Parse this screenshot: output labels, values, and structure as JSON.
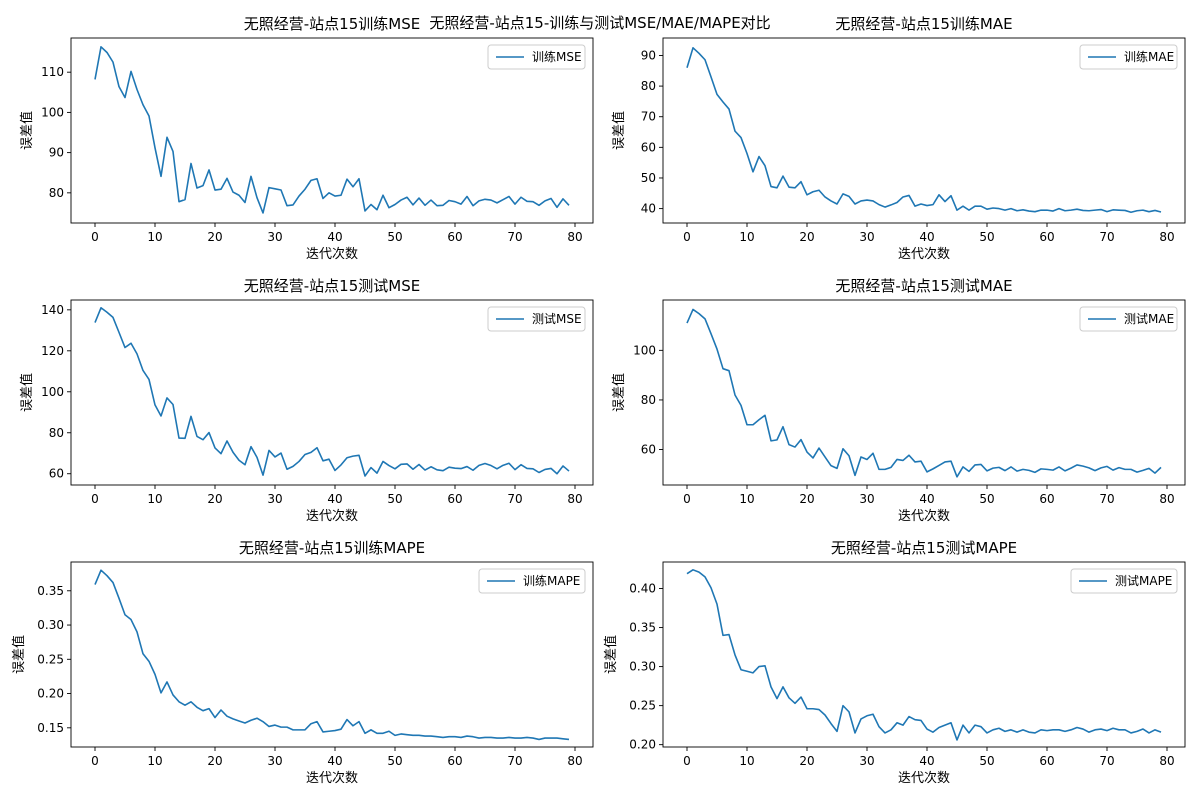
{
  "figure": {
    "suptitle": "无照经营-站点15-训练与测试MSE/MAE/MAPE对比"
  },
  "chart_data": [
    {
      "type": "line",
      "title": "无照经营-站点15训练MSE",
      "xlabel": "迭代次数",
      "ylabel": "误差值",
      "xlim": [
        -4,
        83
      ],
      "ylim": [
        72.5,
        118.5
      ],
      "xticks": [
        0,
        10,
        20,
        30,
        40,
        50,
        60,
        70,
        80
      ],
      "yticks": [
        80,
        90,
        100,
        110
      ],
      "grid": false,
      "legend_position": "top-right",
      "series": [
        {
          "name": "训练MSE",
          "color": "#1f77b4",
          "values": [
            108.2,
            116.3,
            114.9,
            112.5,
            106.4,
            103.7,
            110.2,
            105.7,
            101.9,
            99.1,
            91.2,
            84.1,
            93.8,
            90.3,
            77.8,
            78.3,
            87.3,
            81.2,
            81.8,
            85.7,
            80.7,
            80.9,
            83.6,
            80.2,
            79.4,
            77.6,
            84.1,
            78.8,
            75.0,
            81.3,
            81.0,
            80.7,
            76.8,
            77.0,
            79.2,
            80.9,
            83.1,
            83.5,
            78.6,
            80.0,
            79.2,
            79.4,
            83.4,
            81.5,
            83.5,
            75.5,
            77.1,
            75.8,
            79.4,
            76.3,
            77.1,
            78.2,
            78.9,
            77.0,
            78.7,
            76.9,
            78.2,
            76.8,
            76.9,
            78.1,
            77.8,
            77.2,
            79.1,
            76.8,
            78.0,
            78.4,
            78.2,
            77.5,
            78.3,
            79.1,
            77.2,
            78.9,
            77.9,
            77.8,
            76.9,
            78.0,
            78.6,
            76.4,
            78.5,
            76.9
          ]
        }
      ]
    },
    {
      "type": "line",
      "title": "无照经营-站点15训练MAE",
      "xlabel": "迭代次数",
      "ylabel": "误差值",
      "xlim": [
        -4,
        83
      ],
      "ylim": [
        35.3,
        95.7
      ],
      "xticks": [
        0,
        10,
        20,
        30,
        40,
        50,
        60,
        70,
        80
      ],
      "yticks": [
        40,
        50,
        60,
        70,
        80,
        90
      ],
      "grid": false,
      "legend_position": "top-right",
      "series": [
        {
          "name": "训练MAE",
          "color": "#1f77b4",
          "values": [
            86.0,
            92.5,
            90.7,
            88.6,
            83.0,
            77.3,
            74.8,
            72.5,
            65.3,
            63.2,
            58.0,
            52.0,
            57.0,
            54.0,
            47.2,
            46.8,
            50.6,
            47.0,
            46.8,
            48.8,
            44.5,
            45.5,
            46.0,
            43.8,
            42.5,
            41.5,
            44.8,
            44.0,
            41.5,
            42.5,
            42.8,
            42.5,
            41.3,
            40.5,
            41.2,
            42.0,
            43.8,
            44.3,
            40.8,
            41.5,
            41.0,
            41.3,
            44.5,
            42.3,
            44.2,
            39.5,
            40.8,
            39.5,
            40.8,
            40.8,
            39.8,
            40.2,
            40.0,
            39.5,
            40.0,
            39.3,
            39.6,
            39.2,
            39.0,
            39.5,
            39.5,
            39.2,
            40.0,
            39.3,
            39.5,
            39.8,
            39.4,
            39.3,
            39.5,
            39.7,
            39.0,
            39.6,
            39.5,
            39.4,
            38.8,
            39.3,
            39.5,
            39.0,
            39.4,
            38.9
          ]
        }
      ]
    },
    {
      "type": "line",
      "title": "无照经营-站点15测试MSE",
      "xlabel": "迭代次数",
      "ylabel": "误差值",
      "xlim": [
        -4,
        83
      ],
      "ylim": [
        54.5,
        144.8
      ],
      "xticks": [
        0,
        10,
        20,
        30,
        40,
        50,
        60,
        70,
        80
      ],
      "yticks": [
        60,
        80,
        100,
        120,
        140
      ],
      "grid": false,
      "legend_position": "top-right",
      "series": [
        {
          "name": "测试MSE",
          "color": "#1f77b4",
          "values": [
            133.8,
            141.0,
            138.8,
            136.3,
            129.0,
            121.6,
            123.7,
            118.5,
            110.4,
            106.0,
            93.6,
            88.2,
            97.0,
            93.8,
            77.4,
            77.3,
            88.0,
            78.2,
            76.6,
            80.1,
            72.6,
            69.8,
            76.0,
            70.5,
            66.6,
            64.4,
            73.2,
            68.0,
            59.3,
            71.4,
            68.2,
            70.1,
            62.2,
            63.6,
            66.0,
            69.4,
            70.4,
            72.7,
            66.3,
            67.1,
            61.6,
            64.3,
            67.8,
            68.6,
            69.0,
            58.9,
            63.0,
            60.3,
            66.0,
            64.0,
            62.4,
            64.6,
            64.8,
            62.2,
            64.5,
            61.8,
            63.4,
            61.9,
            61.5,
            63.2,
            62.7,
            62.5,
            63.5,
            61.7,
            64.1,
            65.0,
            64.0,
            62.4,
            64.1,
            65.1,
            62.0,
            64.4,
            62.6,
            62.4,
            60.6,
            62.1,
            62.6,
            60.0,
            63.8,
            61.3
          ]
        }
      ]
    },
    {
      "type": "line",
      "title": "无照经营-站点15测试MAE",
      "xlabel": "迭代次数",
      "ylabel": "误差值",
      "xlim": [
        -4,
        83
      ],
      "ylim": [
        45.7,
        120.3
      ],
      "xticks": [
        0,
        10,
        20,
        30,
        40,
        50,
        60,
        70,
        80
      ],
      "yticks": [
        60,
        80,
        100
      ],
      "grid": false,
      "legend_position": "top-right",
      "series": [
        {
          "name": "测试MAE",
          "color": "#1f77b4",
          "values": [
            111.0,
            116.5,
            114.8,
            112.7,
            106.7,
            100.5,
            92.6,
            91.8,
            82.0,
            77.8,
            70.0,
            70.0,
            72.0,
            73.8,
            63.5,
            63.9,
            69.2,
            62.0,
            61.0,
            64.0,
            59.0,
            56.6,
            60.6,
            57.0,
            53.5,
            52.4,
            60.3,
            57.5,
            49.6,
            57.0,
            56.0,
            58.5,
            52.0,
            52.0,
            52.8,
            56.0,
            55.6,
            57.7,
            55.0,
            55.3,
            51.0,
            52.2,
            53.6,
            55.0,
            55.3,
            49.0,
            53.0,
            51.2,
            53.8,
            54.0,
            51.4,
            52.5,
            52.8,
            51.5,
            53.0,
            51.3,
            52.0,
            51.6,
            50.8,
            52.2,
            52.0,
            51.7,
            53.0,
            51.4,
            52.5,
            53.8,
            53.3,
            52.6,
            51.5,
            52.6,
            53.2,
            51.7,
            52.7,
            52.0,
            52.0,
            50.9,
            51.6,
            52.4,
            50.5,
            52.8
          ]
        }
      ]
    },
    {
      "type": "line",
      "title": "无照经营-站点15训练MAPE",
      "xlabel": "迭代次数",
      "ylabel": "误差值",
      "xlim": [
        -4,
        83
      ],
      "ylim": [
        0.122,
        0.392
      ],
      "xticks": [
        0,
        10,
        20,
        30,
        40,
        50,
        60,
        70,
        80
      ],
      "yticks": [
        0.15,
        0.2,
        0.25,
        0.3,
        0.35
      ],
      "ytick_labels": [
        "0.15",
        "0.20",
        "0.25",
        "0.30",
        "0.35"
      ],
      "grid": false,
      "legend_position": "top-right",
      "series": [
        {
          "name": "训练MAPE",
          "color": "#1f77b4",
          "values": [
            0.359,
            0.38,
            0.372,
            0.362,
            0.339,
            0.315,
            0.308,
            0.29,
            0.258,
            0.247,
            0.228,
            0.201,
            0.217,
            0.198,
            0.188,
            0.183,
            0.188,
            0.18,
            0.175,
            0.178,
            0.165,
            0.176,
            0.167,
            0.163,
            0.16,
            0.157,
            0.161,
            0.164,
            0.159,
            0.152,
            0.154,
            0.151,
            0.151,
            0.147,
            0.147,
            0.147,
            0.156,
            0.159,
            0.144,
            0.145,
            0.146,
            0.148,
            0.162,
            0.153,
            0.159,
            0.142,
            0.147,
            0.142,
            0.142,
            0.145,
            0.139,
            0.141,
            0.14,
            0.139,
            0.139,
            0.138,
            0.138,
            0.137,
            0.136,
            0.137,
            0.137,
            0.136,
            0.138,
            0.137,
            0.135,
            0.136,
            0.136,
            0.135,
            0.135,
            0.136,
            0.135,
            0.135,
            0.136,
            0.135,
            0.133,
            0.135,
            0.135,
            0.135,
            0.134,
            0.133
          ]
        }
      ]
    },
    {
      "type": "line",
      "title": "无照经营-站点15测试MAPE",
      "xlabel": "迭代次数",
      "ylabel": "误差值",
      "xlim": [
        -4,
        83
      ],
      "ylim": [
        0.197,
        0.434
      ],
      "xticks": [
        0,
        10,
        20,
        30,
        40,
        50,
        60,
        70,
        80
      ],
      "yticks": [
        0.2,
        0.25,
        0.3,
        0.35,
        0.4
      ],
      "ytick_labels": [
        "0.20",
        "0.25",
        "0.30",
        "0.35",
        "0.40"
      ],
      "grid": false,
      "legend_position": "top-right",
      "series": [
        {
          "name": "测试MAPE",
          "color": "#1f77b4",
          "values": [
            0.419,
            0.424,
            0.421,
            0.415,
            0.401,
            0.38,
            0.34,
            0.341,
            0.315,
            0.296,
            0.294,
            0.292,
            0.3,
            0.301,
            0.274,
            0.259,
            0.274,
            0.26,
            0.253,
            0.261,
            0.246,
            0.246,
            0.245,
            0.238,
            0.227,
            0.217,
            0.25,
            0.242,
            0.215,
            0.233,
            0.237,
            0.239,
            0.223,
            0.215,
            0.219,
            0.228,
            0.225,
            0.236,
            0.232,
            0.231,
            0.22,
            0.216,
            0.222,
            0.225,
            0.228,
            0.206,
            0.225,
            0.215,
            0.225,
            0.223,
            0.215,
            0.219,
            0.221,
            0.217,
            0.219,
            0.216,
            0.219,
            0.216,
            0.215,
            0.219,
            0.218,
            0.219,
            0.219,
            0.217,
            0.219,
            0.222,
            0.22,
            0.216,
            0.219,
            0.22,
            0.218,
            0.221,
            0.219,
            0.219,
            0.215,
            0.217,
            0.22,
            0.215,
            0.219,
            0.216
          ]
        }
      ]
    }
  ]
}
